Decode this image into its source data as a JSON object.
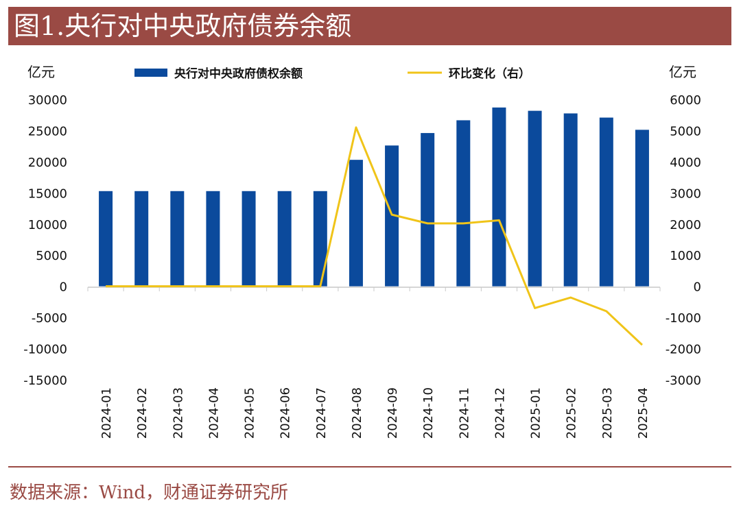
{
  "title": "图1.央行对中央政府债券余额",
  "source": "数据来源：Wind，财通证券研究所",
  "chart_data": {
    "type": "bar+line",
    "title": "图1.央行对中央政府债券余额",
    "left_unit": "亿元",
    "right_unit": "亿元",
    "categories": [
      "2024-01",
      "2024-02",
      "2024-03",
      "2024-04",
      "2024-05",
      "2024-06",
      "2024-07",
      "2024-08",
      "2024-09",
      "2024-10",
      "2024-11",
      "2024-12",
      "2025-01",
      "2025-02",
      "2025-03",
      "2025-04"
    ],
    "series": [
      {
        "name": "央行对中央政府债权余额",
        "type": "bar",
        "axis": "left",
        "color": "#0b4a9c",
        "values": [
          15280,
          15280,
          15280,
          15280,
          15280,
          15280,
          15280,
          20300,
          22600,
          24600,
          26650,
          28700,
          28170,
          27750,
          27080,
          25120
        ]
      },
      {
        "name": "环比变化（右）",
        "type": "line",
        "axis": "right",
        "color": "#f0c419",
        "values": [
          0,
          0,
          0,
          0,
          0,
          0,
          0,
          5100,
          2300,
          2020,
          2020,
          2120,
          -700,
          -360,
          -800,
          -1880
        ]
      }
    ],
    "ylim_left": [
      -15000,
      30000
    ],
    "yticks_left": [
      "30000",
      "25000",
      "20000",
      "15000",
      "10000",
      "5000",
      "0",
      "-5000",
      "-10000",
      "-15000"
    ],
    "ylim_right": [
      -3000,
      6000
    ],
    "yticks_right": [
      "6000",
      "5000",
      "4000",
      "3000",
      "2000",
      "1000",
      "0",
      "-1000",
      "-2000",
      "-3000"
    ],
    "legend_position": "top",
    "grid": false
  }
}
